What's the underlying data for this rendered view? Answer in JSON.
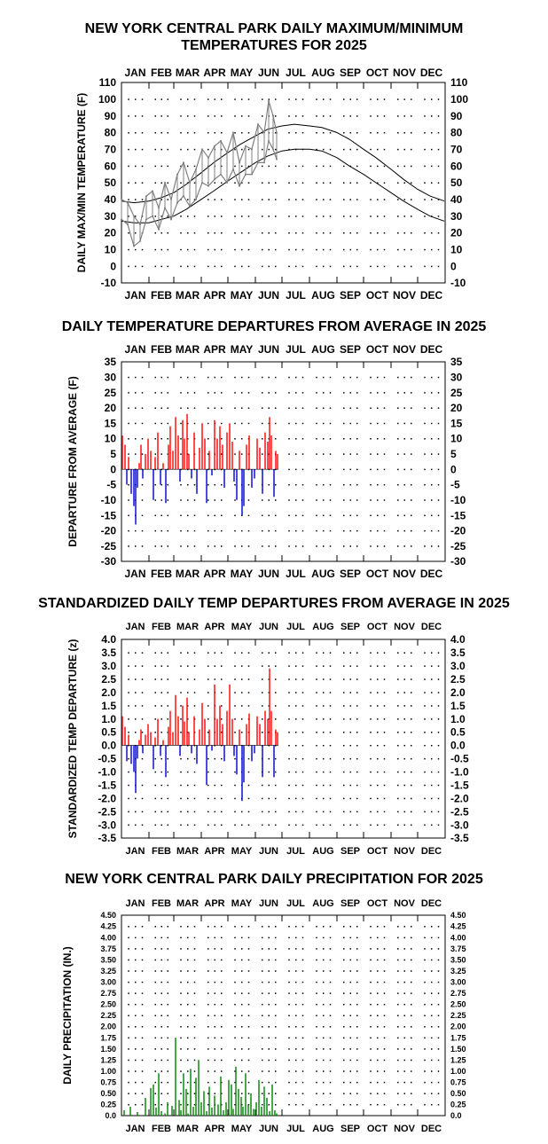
{
  "colors": {
    "frame": "#000000",
    "observed": "#808080",
    "above": "#ff0000",
    "below": "#0000cc",
    "precip": "#008000"
  },
  "months": [
    "JAN",
    "FEB",
    "MAR",
    "APR",
    "MAY",
    "JUN",
    "JUL",
    "AUG",
    "SEP",
    "OCT",
    "NOV",
    "DEC"
  ],
  "chart_data": [
    {
      "type": "line",
      "title": "NEW YORK CENTRAL PARK DAILY MAXIMUM/MINIMUM TEMPERATURES FOR 2025",
      "title_lines": [
        "NEW YORK CENTRAL PARK DAILY MAXIMUM/MINIMUM",
        "TEMPERATURES FOR 2025"
      ],
      "ylabel": "DAILY MAX/MIN TEMPERATURE (F)",
      "ylim": [
        -10,
        110
      ],
      "ytick_step": 10,
      "yticks": [
        "110",
        "100",
        "90",
        "80",
        "70",
        "60",
        "50",
        "40",
        "30",
        "20",
        "10",
        "0",
        "-10"
      ],
      "x_unit": "day of year",
      "series": [
        {
          "key": "normal_high",
          "x": [
            1,
            15,
            32,
            46,
            60,
            74,
            91,
            105,
            121,
            135,
            152,
            166,
            182,
            196,
            213,
            227,
            244,
            258,
            274,
            288,
            305,
            319,
            335,
            349,
            365
          ],
          "values": [
            39,
            38,
            39,
            41,
            44,
            49,
            56,
            62,
            68,
            73,
            78,
            82,
            84,
            85,
            84,
            83,
            80,
            76,
            70,
            65,
            58,
            52,
            46,
            42,
            39
          ]
        },
        {
          "key": "normal_low",
          "x": [
            1,
            15,
            32,
            46,
            60,
            74,
            91,
            105,
            121,
            135,
            152,
            166,
            182,
            196,
            213,
            227,
            244,
            258,
            274,
            288,
            305,
            319,
            335,
            349,
            365
          ],
          "values": [
            27,
            26,
            26,
            28,
            30,
            34,
            40,
            45,
            51,
            56,
            62,
            66,
            69,
            70,
            70,
            69,
            65,
            60,
            55,
            50,
            44,
            39,
            34,
            30,
            27
          ]
        },
        {
          "key": "observed_high",
          "x": [
            1,
            8,
            15,
            22,
            29,
            36,
            43,
            50,
            57,
            64,
            71,
            78,
            85,
            92,
            99,
            106,
            113,
            120,
            127,
            134,
            141,
            148,
            155,
            162,
            167,
            172,
            176
          ],
          "values": [
            40,
            38,
            30,
            25,
            42,
            45,
            35,
            50,
            40,
            55,
            62,
            50,
            58,
            70,
            65,
            72,
            75,
            68,
            80,
            62,
            72,
            70,
            85,
            80,
            99,
            90,
            80
          ]
        },
        {
          "key": "observed_low",
          "x": [
            1,
            8,
            15,
            22,
            29,
            36,
            43,
            50,
            57,
            64,
            71,
            78,
            85,
            92,
            99,
            106,
            113,
            120,
            127,
            134,
            141,
            148,
            155,
            162,
            167,
            172,
            176
          ],
          "values": [
            28,
            25,
            12,
            15,
            28,
            30,
            22,
            35,
            28,
            38,
            42,
            36,
            40,
            50,
            48,
            52,
            55,
            50,
            58,
            48,
            55,
            55,
            62,
            62,
            75,
            70,
            64
          ]
        }
      ]
    },
    {
      "type": "bar",
      "title": "DAILY TEMPERATURE DEPARTURES FROM AVERAGE IN 2025",
      "ylabel": "DEPARTURE FROM AVERAGE (F)",
      "ylim": [
        -30,
        35
      ],
      "ytick_step": 5,
      "yticks": [
        "35",
        "30",
        "25",
        "20",
        "15",
        "10",
        "5",
        "0",
        "-5",
        "-10",
        "-15",
        "-20",
        "-25",
        "-30"
      ],
      "x_unit": "day of year",
      "x": [
        2,
        5,
        7,
        9,
        12,
        15,
        17,
        19,
        21,
        23,
        25,
        28,
        31,
        34,
        37,
        39,
        42,
        45,
        48,
        51,
        54,
        56,
        59,
        62,
        65,
        67,
        70,
        72,
        75,
        77,
        80,
        83,
        86,
        89,
        92,
        95,
        97,
        100,
        103,
        106,
        109,
        112,
        115,
        117,
        120,
        123,
        126,
        128,
        131,
        134,
        137,
        139,
        142,
        145,
        148,
        151,
        154,
        157,
        160,
        163,
        166,
        168,
        170,
        173,
        175,
        177
      ],
      "values": [
        11,
        8,
        -5,
        4,
        -8,
        -12,
        -18,
        -6,
        2,
        8,
        -3,
        5,
        10,
        6,
        -10,
        4,
        12,
        -5,
        2,
        -11,
        8,
        14,
        6,
        17,
        11,
        -4,
        16,
        10,
        18,
        5,
        -3,
        12,
        -8,
        7,
        15,
        10,
        -11,
        6,
        -2,
        16,
        10,
        14,
        8,
        -6,
        12,
        15,
        9,
        -4,
        -10,
        6,
        -15,
        -12,
        8,
        11,
        -6,
        -3,
        10,
        7,
        -8,
        12,
        9,
        17,
        11,
        -9,
        6,
        5
      ]
    },
    {
      "type": "bar",
      "title": "STANDARDIZED DAILY TEMP DEPARTURES FROM AVERAGE IN 2025",
      "ylabel": "STANDARDIZED TEMP DEPARTURE (z)",
      "ylim": [
        -3.5,
        4.0
      ],
      "ytick_step": 0.5,
      "yticks": [
        "4.0",
        "3.5",
        "3.0",
        "2.5",
        "2.0",
        "1.5",
        "1.0",
        "0.5",
        "0.0",
        "-0.5",
        "-1.0",
        "-1.5",
        "-2.0",
        "-2.5",
        "-3.0",
        "-3.5"
      ],
      "x_unit": "day of year",
      "x": [
        2,
        5,
        7,
        9,
        12,
        15,
        17,
        19,
        21,
        23,
        25,
        28,
        31,
        34,
        37,
        39,
        42,
        45,
        48,
        51,
        54,
        56,
        59,
        62,
        65,
        67,
        70,
        72,
        75,
        77,
        80,
        83,
        86,
        89,
        92,
        95,
        97,
        100,
        103,
        106,
        109,
        112,
        115,
        117,
        120,
        123,
        126,
        128,
        131,
        134,
        137,
        139,
        142,
        145,
        148,
        151,
        154,
        157,
        160,
        163,
        166,
        168,
        170,
        173,
        175,
        177
      ],
      "values": [
        1.1,
        0.7,
        -0.6,
        0.4,
        -0.7,
        -1.0,
        -1.8,
        -0.5,
        0.2,
        0.6,
        -0.3,
        0.4,
        0.8,
        0.5,
        -0.9,
        0.3,
        1.0,
        -0.4,
        0.2,
        -1.2,
        0.7,
        1.3,
        0.5,
        1.9,
        1.1,
        -0.4,
        1.5,
        0.9,
        1.8,
        0.5,
        -0.3,
        1.1,
        -0.7,
        0.6,
        1.6,
        1.0,
        -1.5,
        0.6,
        -0.2,
        2.3,
        1.0,
        1.5,
        0.8,
        -0.6,
        1.3,
        2.3,
        1.0,
        -0.4,
        -1.1,
        0.6,
        -2.1,
        -1.4,
        0.8,
        1.2,
        -0.6,
        -0.3,
        1.1,
        0.8,
        -1.2,
        1.3,
        1.0,
        2.9,
        1.3,
        -1.2,
        0.6,
        0.5
      ]
    },
    {
      "type": "bar",
      "title": "NEW YORK CENTRAL PARK DAILY PRECIPITATION FOR 2025",
      "ylabel": "DAILY PRECIPITATION (IN.)",
      "ylim": [
        0,
        4.5
      ],
      "ytick_step": 0.25,
      "yticks": [
        "4.50",
        "4.25",
        "4.00",
        "3.75",
        "3.50",
        "3.25",
        "3.00",
        "2.75",
        "2.50",
        "2.25",
        "2.00",
        "1.75",
        "1.50",
        "1.25",
        "1.00",
        "0.75",
        "0.50",
        "0.25",
        "0.0"
      ],
      "x_unit": "day of year",
      "x": [
        4,
        11,
        19,
        28,
        34,
        37,
        40,
        43,
        46,
        50,
        53,
        58,
        62,
        66,
        68,
        71,
        74,
        76,
        79,
        82,
        85,
        88,
        91,
        94,
        97,
        100,
        103,
        106,
        110,
        113,
        116,
        119,
        122,
        125,
        127,
        130,
        133,
        136,
        138,
        141,
        144,
        147,
        150,
        153,
        156,
        159,
        162,
        165,
        168,
        171,
        174,
        176
      ],
      "values": [
        0.12,
        0.2,
        0.08,
        0.4,
        0.62,
        0.7,
        0.18,
        0.95,
        0.1,
        0.05,
        0.3,
        0.22,
        1.75,
        0.35,
        0.12,
        0.95,
        0.6,
        0.05,
        1.05,
        0.2,
        0.85,
        1.25,
        0.3,
        0.55,
        0.1,
        0.65,
        0.18,
        0.45,
        0.25,
        0.88,
        0.12,
        0.3,
        0.8,
        0.7,
        0.15,
        1.1,
        0.6,
        0.42,
        0.2,
        0.95,
        0.25,
        0.5,
        0.15,
        0.3,
        0.8,
        0.2,
        0.65,
        0.4,
        0.1,
        0.7,
        0.12,
        0.05
      ]
    }
  ]
}
